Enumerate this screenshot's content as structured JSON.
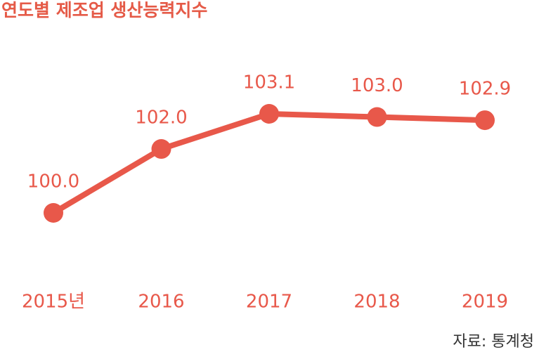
{
  "chart_data": {
    "type": "line",
    "title": "연도별 제조업 생산능력지수",
    "categories": [
      "2015년",
      "2016",
      "2017",
      "2018",
      "2019"
    ],
    "series": [
      {
        "color": "#e8584a",
        "values": [
          100.0,
          102.0,
          103.1,
          103.0,
          102.9
        ],
        "value_labels": [
          "100.0",
          "102.0",
          "103.1",
          "103.0",
          "102.9"
        ]
      }
    ],
    "source": "자료: 통계청"
  }
}
